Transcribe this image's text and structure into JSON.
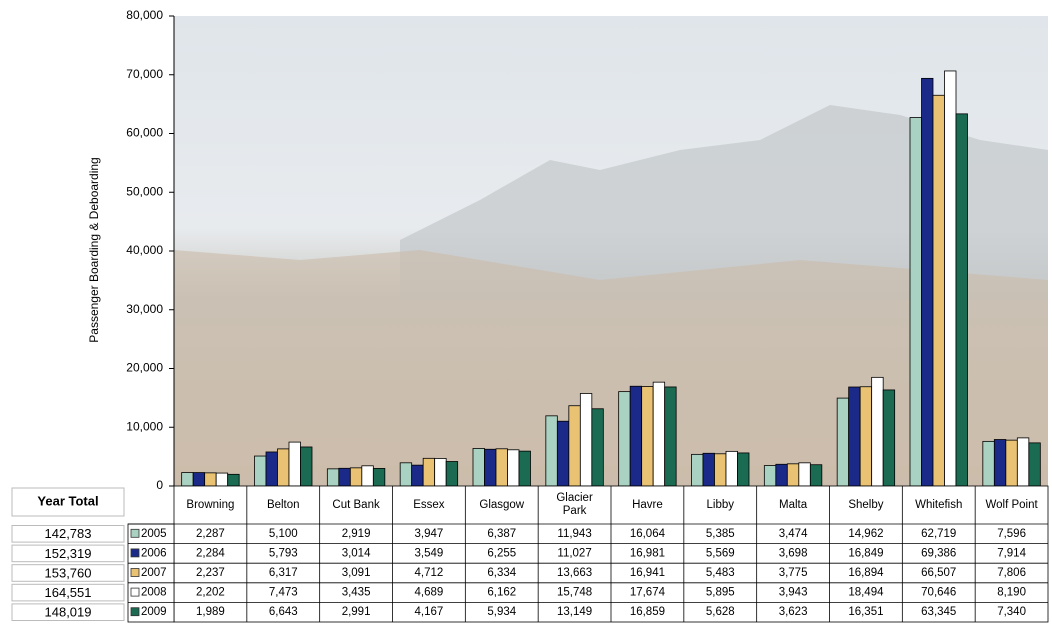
{
  "chart_data": {
    "type": "bar",
    "y_label": "Passenger Boarding & Deboarding",
    "categories": [
      "Browning",
      "Belton",
      "Cut Bank",
      "Essex",
      "Glasgow",
      "Glacier Park",
      "Havre",
      "Libby",
      "Malta",
      "Shelby",
      "Whitefish",
      "Wolf Point"
    ],
    "series": [
      {
        "name": "2005",
        "color": "#a9d2c2",
        "values": [
          2287,
          5100,
          2919,
          3947,
          6387,
          11943,
          16064,
          5385,
          3474,
          14962,
          62719,
          7596
        ],
        "value_labels": [
          "2,287",
          "5,100",
          "2,919",
          "3,947",
          "6,387",
          "11,943",
          "16,064",
          "5,385",
          "3,474",
          "14,962",
          "62,719",
          "7,596"
        ]
      },
      {
        "name": "2006",
        "color": "#1b2a88",
        "values": [
          2284,
          5793,
          3014,
          3549,
          6255,
          11027,
          16981,
          5569,
          3698,
          16849,
          69386,
          7914
        ],
        "value_labels": [
          "2,284",
          "5,793",
          "3,014",
          "3,549",
          "6,255",
          "11,027",
          "16,981",
          "5,569",
          "3,698",
          "16,849",
          "69,386",
          "7,914"
        ]
      },
      {
        "name": "2007",
        "color": "#e9c274",
        "values": [
          2237,
          6317,
          3091,
          4712,
          6334,
          13663,
          16941,
          5483,
          3775,
          16894,
          66507,
          7806
        ],
        "value_labels": [
          "2,237",
          "6,317",
          "3,091",
          "4,712",
          "6,334",
          "13,663",
          "16,941",
          "5,483",
          "3,775",
          "16,894",
          "66,507",
          "7,806"
        ]
      },
      {
        "name": "2008",
        "color": "#ffffff",
        "values": [
          2202,
          7473,
          3435,
          4689,
          6162,
          15748,
          17674,
          5895,
          3943,
          18494,
          70646,
          8190
        ],
        "value_labels": [
          "2,202",
          "7,473",
          "3,435",
          "4,689",
          "6,162",
          "15,748",
          "17,674",
          "5,895",
          "3,943",
          "18,494",
          "70,646",
          "8,190"
        ]
      },
      {
        "name": "2009",
        "color": "#1b6a52",
        "values": [
          1989,
          6643,
          2991,
          4167,
          5934,
          13149,
          16859,
          5628,
          3623,
          16351,
          63345,
          7340
        ],
        "value_labels": [
          "1,989",
          "6,643",
          "2,991",
          "4,167",
          "5,934",
          "13,149",
          "16,859",
          "5,628",
          "3,623",
          "16,351",
          "63,345",
          "7,340"
        ]
      }
    ],
    "year_total_header": "Year Total",
    "year_totals": {
      "values": [
        142783,
        152319,
        153760,
        164551,
        148019
      ],
      "value_labels": [
        "142,783",
        "152,319",
        "153,760",
        "164,551",
        "148,019"
      ]
    },
    "ylim": [
      0,
      80000
    ],
    "yticks": [
      0,
      {
        "value": 10000,
        "label": "10,000"
      },
      {
        "value": 20000,
        "label": "20,000"
      },
      {
        "value": 30000,
        "label": "30,000"
      },
      {
        "value": 40000,
        "label": "40,000"
      },
      {
        "value": 50000,
        "label": "50,000"
      },
      {
        "value": 60000,
        "label": "60,000"
      },
      {
        "value": 70000,
        "label": "70,000"
      },
      {
        "value": 80000,
        "label": "80,000"
      }
    ]
  }
}
